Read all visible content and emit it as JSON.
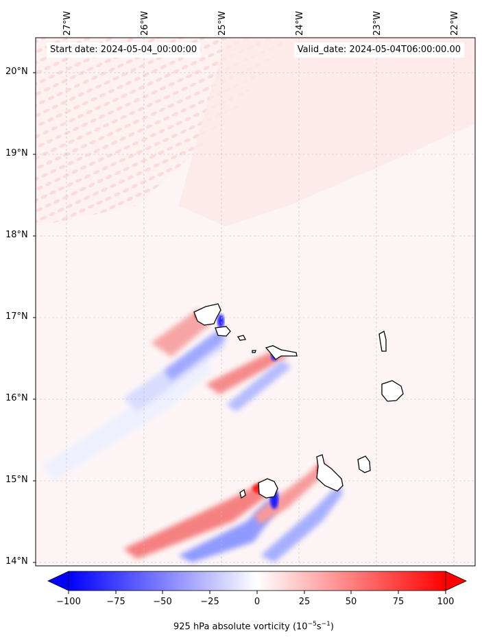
{
  "map": {
    "title_left": "Start date: 2024-05-04_00:00:00",
    "title_right": "Valid_date: 2024-05-04T06:00:00.00",
    "lon_labels": [
      "27°W",
      "26°W",
      "25°W",
      "24°W",
      "23°W",
      "22°W"
    ],
    "lat_labels": [
      "20°N",
      "19°N",
      "18°N",
      "17°N",
      "16°N",
      "15°N",
      "14°N"
    ],
    "lon_range": [
      -27.35,
      -21.8
    ],
    "lat_range": [
      13.95,
      20.4
    ],
    "islands": [
      "Santo Antão",
      "São Vicente",
      "Santa Luzia",
      "São Nicolau",
      "Sal",
      "Boa Vista",
      "Brava",
      "Fogo",
      "Santiago",
      "Maio"
    ]
  },
  "colorbar": {
    "ticks": [
      "−100",
      "−75",
      "−50",
      "−25",
      "0",
      "25",
      "50",
      "75",
      "100"
    ],
    "range": [
      -100,
      100
    ],
    "extend": "both",
    "colormap": "bwr",
    "label_main": "925 hPa absolute vorticity (10",
    "label_sup1": "−5",
    "label_mid": "s",
    "label_sup2": "−1",
    "label_end": ")"
  },
  "colors": {
    "neg": "#0000ff",
    "mid": "#ffffff",
    "pos": "#ff0000",
    "grid": "#bbbbbb"
  }
}
